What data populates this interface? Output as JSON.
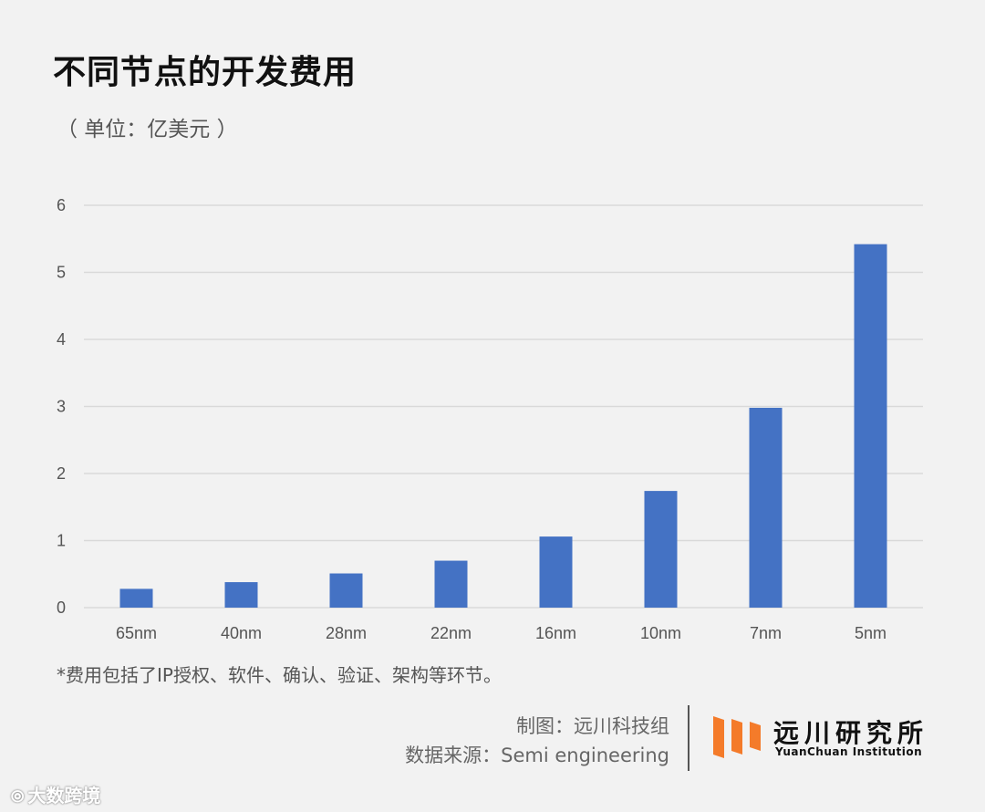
{
  "title": "不同节点的开发费用",
  "unit": "（ 单位：亿美元 ）",
  "note": "*费用包括了IP授权、软件、确认、验证、架构等环节。",
  "credits": {
    "chart_by": "制图：远川科技组",
    "source": "数据来源：Semi engineering"
  },
  "logo": {
    "name_cn": "远川研究所",
    "name_en": "YuanChuan Institution",
    "colors": [
      "#f47b2a",
      "#f47b2a",
      "#f47b2a"
    ]
  },
  "watermark": "大数跨境",
  "chart_data": {
    "type": "bar",
    "title": "不同节点的开发费用",
    "ylabel": "（ 单位：亿美元 ）",
    "categories": [
      "65nm",
      "40nm",
      "28nm",
      "22nm",
      "16nm",
      "10nm",
      "7nm",
      "5nm"
    ],
    "values": [
      0.28,
      0.38,
      0.51,
      0.7,
      1.06,
      1.74,
      2.98,
      5.42
    ],
    "ylim": [
      0,
      6
    ],
    "yticks": [
      0,
      1,
      2,
      3,
      4,
      5,
      6
    ],
    "grid": true,
    "bar_color": "#4472c4",
    "grid_color": "#d9d9d9"
  }
}
